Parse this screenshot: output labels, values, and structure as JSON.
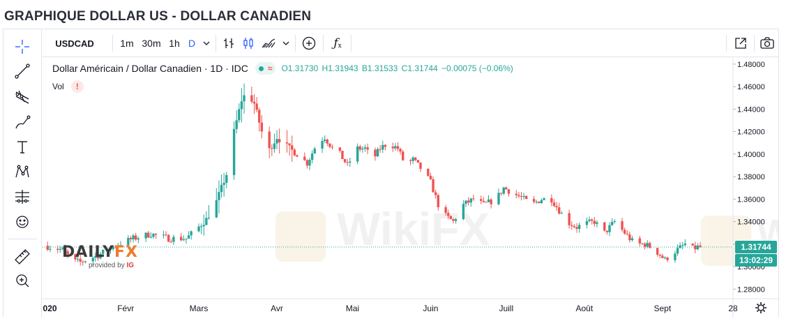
{
  "title": "GRAPHIQUE DOLLAR US - DOLLAR CANADIEN",
  "toolbar": {
    "symbol": "USDCAD",
    "intervals": [
      "1m",
      "30m",
      "1h",
      "D"
    ],
    "active_interval": "D"
  },
  "legend": {
    "name": "Dollar Américain / Dollar Canadien · 1D · IDC",
    "open": "O1.31730",
    "high": "H1.31943",
    "low": "B1.31533",
    "close": "C1.31744",
    "change": "−0.00075 (−0.06%)",
    "vol_label": "Vol",
    "warn": "!"
  },
  "watermark": {
    "brand_a": "DAILY",
    "brand_b": "FX",
    "provided_by": "provided by",
    "ig": "IG"
  },
  "colors": {
    "up": "#26a69a",
    "down": "#ef5350",
    "price_line": "#26a69a"
  },
  "price_tags": {
    "last": "1.31744",
    "countdown": "13:02:29"
  },
  "chart_data": {
    "type": "candlestick",
    "y_axis": {
      "ticks": [
        1.28,
        1.3,
        1.32,
        1.34,
        1.36,
        1.38,
        1.4,
        1.42,
        1.44,
        1.46,
        1.48
      ],
      "labels": [
        "1.28000",
        "1.30000",
        "1.32000",
        "1.34000",
        "1.36000",
        "1.38000",
        "1.40000",
        "1.42000",
        "1.44000",
        "1.46000",
        "1.48000"
      ],
      "range": [
        1.2715,
        1.4855
      ]
    },
    "x_axis": {
      "labels": [
        "2020",
        "Févr",
        "Mars",
        "Avr",
        "Mai",
        "Juin",
        "Juill",
        "Août",
        "Sept",
        "28"
      ],
      "label_day": [
        0,
        31,
        60,
        91,
        121,
        152,
        182,
        213,
        244,
        272
      ],
      "range_days": [
        -2,
        272
      ]
    },
    "anchors": [
      [
        0,
        1.3185
      ],
      [
        7,
        1.315
      ],
      [
        11,
        1.305
      ],
      [
        14,
        1.304
      ],
      [
        21,
        1.31
      ],
      [
        28,
        1.319
      ],
      [
        35,
        1.325
      ],
      [
        42,
        1.329
      ],
      [
        49,
        1.325
      ],
      [
        56,
        1.325
      ],
      [
        60,
        1.333
      ],
      [
        64,
        1.342
      ],
      [
        68,
        1.358
      ],
      [
        70,
        1.37
      ],
      [
        73,
        1.388
      ],
      [
        75,
        1.42
      ],
      [
        78,
        1.448
      ],
      [
        80,
        1.455
      ],
      [
        83,
        1.445
      ],
      [
        86,
        1.42
      ],
      [
        88,
        1.4
      ],
      [
        92,
        1.415
      ],
      [
        97,
        1.405
      ],
      [
        100,
        1.4
      ],
      [
        104,
        1.392
      ],
      [
        108,
        1.41
      ],
      [
        111,
        1.415
      ],
      [
        114,
        1.405
      ],
      [
        117,
        1.4
      ],
      [
        120,
        1.39
      ],
      [
        124,
        1.405
      ],
      [
        127,
        1.405
      ],
      [
        130,
        1.395
      ],
      [
        133,
        1.405
      ],
      [
        136,
        1.41
      ],
      [
        140,
        1.405
      ],
      [
        143,
        1.39
      ],
      [
        146,
        1.395
      ],
      [
        150,
        1.385
      ],
      [
        153,
        1.375
      ],
      [
        156,
        1.355
      ],
      [
        159,
        1.345
      ],
      [
        162,
        1.34
      ],
      [
        166,
        1.355
      ],
      [
        170,
        1.36
      ],
      [
        174,
        1.355
      ],
      [
        179,
        1.36
      ],
      [
        182,
        1.37
      ],
      [
        186,
        1.365
      ],
      [
        190,
        1.36
      ],
      [
        193,
        1.355
      ],
      [
        197,
        1.36
      ],
      [
        201,
        1.36
      ],
      [
        204,
        1.35
      ],
      [
        207,
        1.34
      ],
      [
        211,
        1.335
      ],
      [
        214,
        1.338
      ],
      [
        218,
        1.34
      ],
      [
        222,
        1.33
      ],
      [
        226,
        1.34
      ],
      [
        230,
        1.33
      ],
      [
        234,
        1.32
      ],
      [
        238,
        1.32
      ],
      [
        242,
        1.315
      ],
      [
        246,
        1.306
      ],
      [
        248,
        1.31
      ],
      [
        251,
        1.315
      ],
      [
        254,
        1.32
      ],
      [
        256,
        1.315
      ],
      [
        259,
        1.3174
      ]
    ],
    "last_price": 1.31744
  }
}
